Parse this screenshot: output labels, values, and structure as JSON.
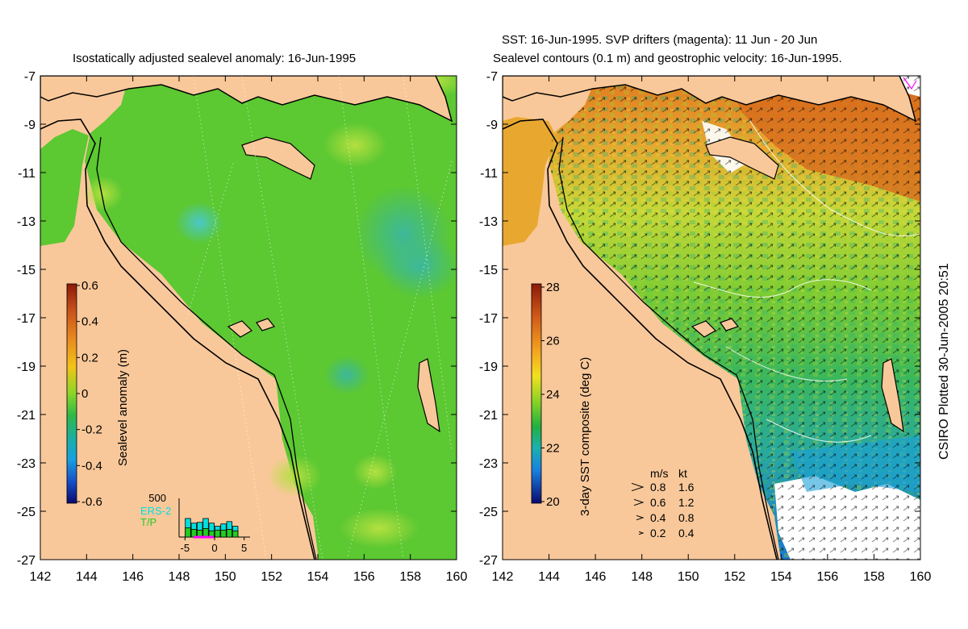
{
  "left_panel": {
    "title": "Isostatically adjusted sealevel anomaly: 16-Jun-1995",
    "y_ticks": [
      "-7",
      "-9",
      "-11",
      "-13",
      "-15",
      "-17",
      "-19",
      "-21",
      "-23",
      "-25",
      "-27"
    ],
    "x_ticks": [
      "142",
      "144",
      "146",
      "148",
      "150",
      "152",
      "154",
      "156",
      "158",
      "160"
    ],
    "colorbar": {
      "label": "Sealevel anomaly (m)",
      "ticks": [
        "0.6",
        "0.4",
        "0.2",
        "0",
        "-0.2",
        "-0.4",
        "-0.6"
      ]
    },
    "inset": {
      "y_max": "500",
      "x_ticks": [
        "-5",
        "0",
        "5"
      ],
      "legend": [
        {
          "label": "ERS-2",
          "color": "#00e0e0"
        },
        {
          "label": "T/P",
          "color": "#22cc22"
        }
      ],
      "bars": [
        {
          "x": -4.5,
          "ers2": 240,
          "tp": 120
        },
        {
          "x": -3.5,
          "ers2": 180,
          "tp": 100
        },
        {
          "x": -2.5,
          "ers2": 190,
          "tp": 90
        },
        {
          "x": -1.5,
          "ers2": 240,
          "tp": 110
        },
        {
          "x": -0.5,
          "ers2": 180,
          "tp": 80
        },
        {
          "x": 0.5,
          "ers2": 140,
          "tp": 90
        },
        {
          "x": 1.5,
          "ers2": 170,
          "tp": 90
        },
        {
          "x": 2.5,
          "ers2": 200,
          "tp": 100
        },
        {
          "x": 3.5,
          "ers2": 140,
          "tp": 80
        }
      ]
    }
  },
  "right_panel": {
    "title_line1": "SST: 16-Jun-1995. SVP drifters (magenta): 11 Jun - 20 Jun",
    "title_line2": "Sealevel contours (0.1 m) and geostrophic velocity: 16-Jun-1995.",
    "y_ticks": [
      "-7",
      "-9",
      "-11",
      "-13",
      "-15",
      "-17",
      "-19",
      "-21",
      "-23",
      "-25",
      "-27"
    ],
    "x_ticks": [
      "142",
      "144",
      "146",
      "148",
      "150",
      "152",
      "154",
      "156",
      "158",
      "160"
    ],
    "colorbar": {
      "label": "3-day SST composite (deg C)",
      "ticks": [
        "28",
        "26",
        "24",
        "22",
        "20"
      ]
    },
    "velocity_legend": {
      "header_ms": "m/s",
      "header_kt": "kt",
      "rows": [
        {
          "ms": "0.8",
          "kt": "1.6"
        },
        {
          "ms": "0.6",
          "kt": "1.2"
        },
        {
          "ms": "0.4",
          "kt": "0.8"
        },
        {
          "ms": "0.2",
          "kt": "0.4"
        }
      ]
    }
  },
  "footer": "CSIRO Plotted 30-Jun-2005 20:51",
  "colors": {
    "land": "#f9c89a",
    "ocean_green": "#5cc832",
    "coast": "#000000",
    "drifter": "#ff00ff"
  }
}
